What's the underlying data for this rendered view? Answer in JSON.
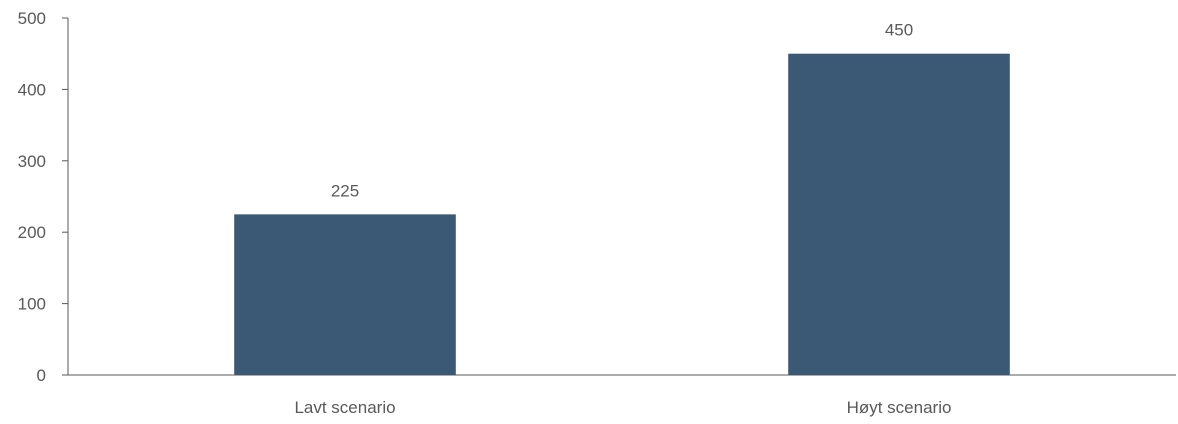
{
  "chart_data": {
    "type": "bar",
    "categories": [
      "Lavt scenario",
      "Høyt scenario"
    ],
    "values": [
      225,
      450
    ],
    "data_labels": [
      "225",
      "450"
    ],
    "title": "",
    "xlabel": "",
    "ylabel": "",
    "ylim": [
      0,
      500
    ],
    "yticks": [
      0,
      100,
      200,
      300,
      400,
      500
    ],
    "ytick_labels": [
      "0",
      "100",
      "200",
      "300",
      "400",
      "500"
    ],
    "grid": false,
    "legend": "none",
    "bar_color": "#3b5874",
    "axis_color": "#595959"
  }
}
